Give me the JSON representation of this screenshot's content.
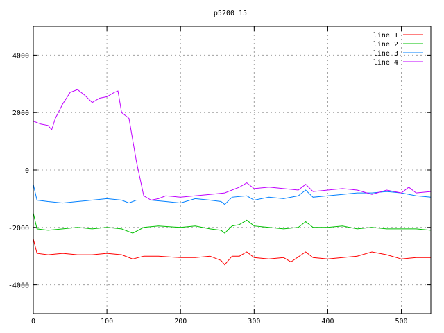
{
  "chart_data": {
    "type": "line",
    "title": "p5200_15",
    "xlabel": "",
    "ylabel": "",
    "xlim": [
      0,
      540
    ],
    "ylim": [
      -5000,
      5000
    ],
    "xticks": [
      0,
      100,
      200,
      300,
      400,
      500
    ],
    "yticks": [
      -4000,
      -2000,
      0,
      2000,
      4000
    ],
    "grid": true,
    "legend_position": "top-right",
    "series": [
      {
        "name": "line 1",
        "color": "#ff0000",
        "points": [
          [
            0,
            -2400
          ],
          [
            5,
            -2900
          ],
          [
            20,
            -2950
          ],
          [
            40,
            -2900
          ],
          [
            60,
            -2950
          ],
          [
            80,
            -2950
          ],
          [
            100,
            -2900
          ],
          [
            120,
            -2950
          ],
          [
            135,
            -3100
          ],
          [
            150,
            -3000
          ],
          [
            170,
            -3000
          ],
          [
            200,
            -3050
          ],
          [
            220,
            -3050
          ],
          [
            240,
            -3000
          ],
          [
            255,
            -3150
          ],
          [
            260,
            -3300
          ],
          [
            270,
            -3000
          ],
          [
            280,
            -3000
          ],
          [
            290,
            -2850
          ],
          [
            300,
            -3050
          ],
          [
            320,
            -3100
          ],
          [
            340,
            -3050
          ],
          [
            350,
            -3200
          ],
          [
            370,
            -2850
          ],
          [
            380,
            -3050
          ],
          [
            400,
            -3100
          ],
          [
            420,
            -3050
          ],
          [
            440,
            -3000
          ],
          [
            460,
            -2850
          ],
          [
            480,
            -2950
          ],
          [
            500,
            -3100
          ],
          [
            520,
            -3050
          ],
          [
            540,
            -3050
          ]
        ]
      },
      {
        "name": "line 2",
        "color": "#00c000",
        "points": [
          [
            0,
            -1500
          ],
          [
            5,
            -2050
          ],
          [
            20,
            -2100
          ],
          [
            40,
            -2050
          ],
          [
            60,
            -2000
          ],
          [
            80,
            -2050
          ],
          [
            100,
            -2000
          ],
          [
            120,
            -2050
          ],
          [
            135,
            -2200
          ],
          [
            150,
            -2000
          ],
          [
            170,
            -1950
          ],
          [
            200,
            -2000
          ],
          [
            220,
            -1950
          ],
          [
            240,
            -2050
          ],
          [
            255,
            -2100
          ],
          [
            260,
            -2200
          ],
          [
            270,
            -1950
          ],
          [
            280,
            -1900
          ],
          [
            290,
            -1750
          ],
          [
            300,
            -1950
          ],
          [
            320,
            -2000
          ],
          [
            340,
            -2050
          ],
          [
            360,
            -2000
          ],
          [
            370,
            -1800
          ],
          [
            380,
            -2000
          ],
          [
            400,
            -2000
          ],
          [
            420,
            -1950
          ],
          [
            440,
            -2050
          ],
          [
            460,
            -2000
          ],
          [
            480,
            -2050
          ],
          [
            500,
            -2050
          ],
          [
            520,
            -2050
          ],
          [
            540,
            -2100
          ]
        ]
      },
      {
        "name": "line 3",
        "color": "#0080ff",
        "points": [
          [
            0,
            -500
          ],
          [
            5,
            -1050
          ],
          [
            20,
            -1100
          ],
          [
            40,
            -1150
          ],
          [
            60,
            -1100
          ],
          [
            80,
            -1050
          ],
          [
            100,
            -1000
          ],
          [
            120,
            -1050
          ],
          [
            130,
            -1150
          ],
          [
            140,
            -1050
          ],
          [
            160,
            -1050
          ],
          [
            180,
            -1100
          ],
          [
            200,
            -1150
          ],
          [
            220,
            -1000
          ],
          [
            240,
            -1050
          ],
          [
            255,
            -1100
          ],
          [
            260,
            -1200
          ],
          [
            270,
            -950
          ],
          [
            290,
            -900
          ],
          [
            300,
            -1050
          ],
          [
            320,
            -950
          ],
          [
            340,
            -1000
          ],
          [
            360,
            -900
          ],
          [
            370,
            -700
          ],
          [
            380,
            -950
          ],
          [
            400,
            -900
          ],
          [
            420,
            -850
          ],
          [
            440,
            -800
          ],
          [
            460,
            -800
          ],
          [
            480,
            -750
          ],
          [
            500,
            -800
          ],
          [
            520,
            -900
          ],
          [
            540,
            -950
          ]
        ]
      },
      {
        "name": "line 4",
        "color": "#c000ff",
        "points": [
          [
            0,
            1700
          ],
          [
            10,
            1600
          ],
          [
            20,
            1550
          ],
          [
            25,
            1400
          ],
          [
            30,
            1800
          ],
          [
            40,
            2300
          ],
          [
            50,
            2700
          ],
          [
            60,
            2800
          ],
          [
            70,
            2600
          ],
          [
            80,
            2350
          ],
          [
            90,
            2500
          ],
          [
            100,
            2550
          ],
          [
            110,
            2700
          ],
          [
            115,
            2750
          ],
          [
            120,
            2000
          ],
          [
            130,
            1800
          ],
          [
            140,
            300
          ],
          [
            150,
            -900
          ],
          [
            160,
            -1050
          ],
          [
            170,
            -1000
          ],
          [
            180,
            -900
          ],
          [
            200,
            -950
          ],
          [
            220,
            -900
          ],
          [
            240,
            -850
          ],
          [
            260,
            -800
          ],
          [
            280,
            -600
          ],
          [
            290,
            -450
          ],
          [
            300,
            -650
          ],
          [
            320,
            -600
          ],
          [
            340,
            -650
          ],
          [
            360,
            -700
          ],
          [
            370,
            -500
          ],
          [
            380,
            -750
          ],
          [
            400,
            -700
          ],
          [
            420,
            -650
          ],
          [
            440,
            -700
          ],
          [
            460,
            -850
          ],
          [
            480,
            -700
          ],
          [
            500,
            -800
          ],
          [
            510,
            -600
          ],
          [
            520,
            -800
          ],
          [
            540,
            -750
          ]
        ]
      }
    ]
  }
}
